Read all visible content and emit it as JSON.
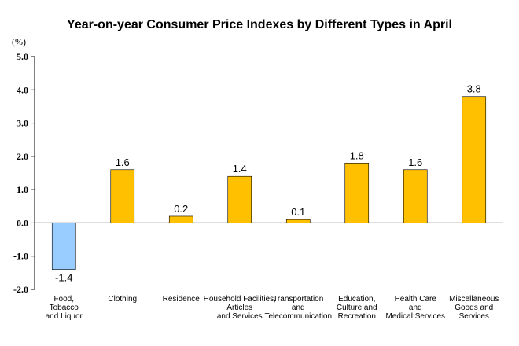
{
  "chart_data": {
    "type": "bar",
    "title": "Year-on-year Consumer Price Indexes by Different Types in April",
    "unit_label": "(%)",
    "ylim": [
      -2.0,
      5.0
    ],
    "y_ticks": [
      "5.0",
      "4.0",
      "3.0",
      "2.0",
      "1.0",
      "0.0",
      "-1.0",
      "-2.0"
    ],
    "grid": false,
    "categories": [
      [
        "Food,",
        "Tobacco",
        "and Liquor"
      ],
      [
        "Clothing"
      ],
      [
        "Residence"
      ],
      [
        "Household Facilities,",
        "Articles",
        "and Services"
      ],
      [
        "Transportation",
        "and",
        "Telecommunication"
      ],
      [
        "Education,",
        "Culture and",
        "Recreation"
      ],
      [
        "Health Care",
        "and",
        "Medical Services"
      ],
      [
        "Miscellaneous",
        "Goods and",
        "Services"
      ]
    ],
    "values": [
      -1.4,
      1.6,
      0.2,
      1.4,
      0.1,
      1.8,
      1.6,
      3.8
    ],
    "value_labels": [
      "-1.4",
      "1.6",
      "0.2",
      "1.4",
      "0.1",
      "1.8",
      "1.6",
      "3.8"
    ],
    "colors": {
      "positive": "#FFC000",
      "negative": "#99CCFF",
      "bar_outline": "#000000",
      "axis": "#000000"
    }
  }
}
